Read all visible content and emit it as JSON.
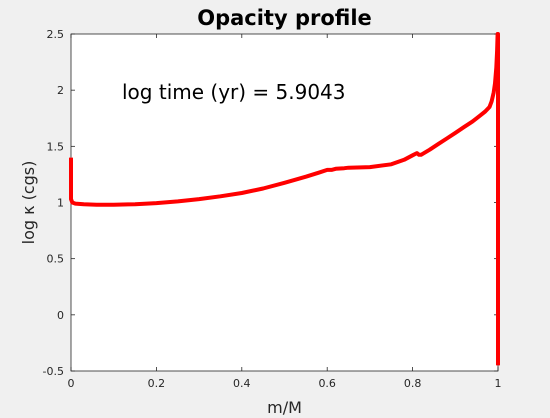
{
  "chart_data": {
    "type": "line",
    "title": "Opacity profile",
    "xlabel": "m/M",
    "ylabel": "log κ (cgs)",
    "annotation": "log time (yr) = 5.9043",
    "xlim": [
      0,
      1
    ],
    "ylim": [
      -0.5,
      2.5
    ],
    "xticks": [
      "0",
      "0.2",
      "0.4",
      "0.6",
      "0.8",
      "1"
    ],
    "yticks": [
      "-0.5",
      "0",
      "0.5",
      "1",
      "1.5",
      "2",
      "2.5"
    ],
    "grid": false,
    "legend": "none",
    "line_color": "#ff0000",
    "series": [
      {
        "x": [
          0.0,
          0.0,
          0.0,
          0.003,
          0.01,
          0.03,
          0.06,
          0.1,
          0.15,
          0.2,
          0.25,
          0.3,
          0.35,
          0.4,
          0.45,
          0.5,
          0.55,
          0.58,
          0.6,
          0.61,
          0.62,
          0.64,
          0.65,
          0.7,
          0.75,
          0.78,
          0.8,
          0.81,
          0.815,
          0.82,
          0.84,
          0.86,
          0.88,
          0.9,
          0.92,
          0.94,
          0.95,
          0.96,
          0.97,
          0.98,
          0.985,
          0.99,
          0.993,
          0.996,
          0.998,
          0.999,
          1.0,
          1.0,
          1.0
        ],
        "y": [
          1.4,
          1.2,
          1.03,
          1.0,
          0.99,
          0.985,
          0.98,
          0.98,
          0.985,
          0.995,
          1.01,
          1.03,
          1.055,
          1.085,
          1.125,
          1.175,
          1.23,
          1.265,
          1.29,
          1.29,
          1.3,
          1.305,
          1.31,
          1.315,
          1.34,
          1.38,
          1.42,
          1.44,
          1.425,
          1.425,
          1.47,
          1.52,
          1.57,
          1.62,
          1.67,
          1.72,
          1.75,
          1.78,
          1.81,
          1.85,
          1.9,
          1.98,
          2.06,
          2.2,
          2.35,
          2.5,
          2.5,
          0.5,
          -0.45
        ]
      }
    ]
  }
}
